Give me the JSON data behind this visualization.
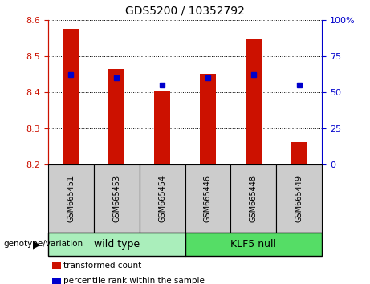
{
  "title": "GDS5200 / 10352792",
  "samples": [
    "GSM665451",
    "GSM665453",
    "GSM665454",
    "GSM665446",
    "GSM665448",
    "GSM665449"
  ],
  "transformed_counts": [
    8.575,
    8.465,
    8.405,
    8.452,
    8.548,
    8.263
  ],
  "percentile_ranks": [
    62,
    60,
    55,
    60,
    62,
    55
  ],
  "ylim": [
    8.2,
    8.6
  ],
  "yticks": [
    8.2,
    8.3,
    8.4,
    8.5,
    8.6
  ],
  "y2lim": [
    0,
    100
  ],
  "y2ticks": [
    0,
    25,
    50,
    75,
    100
  ],
  "y2labels": [
    "0",
    "25",
    "50",
    "75",
    "100%"
  ],
  "bar_color": "#cc1100",
  "dot_color": "#0000cc",
  "bar_bottom": 8.2,
  "groups": [
    {
      "label": "wild type",
      "indices": [
        0,
        1,
        2
      ],
      "color": "#aaeebb"
    },
    {
      "label": "KLF5 null",
      "indices": [
        3,
        4,
        5
      ],
      "color": "#55dd66"
    }
  ],
  "group_label": "genotype/variation",
  "legend_items": [
    {
      "label": "transformed count",
      "color": "#cc1100"
    },
    {
      "label": "percentile rank within the sample",
      "color": "#0000cc"
    }
  ],
  "tick_color_left": "#cc1100",
  "tick_color_right": "#0000cc",
  "sample_box_color": "#cccccc",
  "figure_width": 4.61,
  "figure_height": 3.54,
  "dpi": 100
}
